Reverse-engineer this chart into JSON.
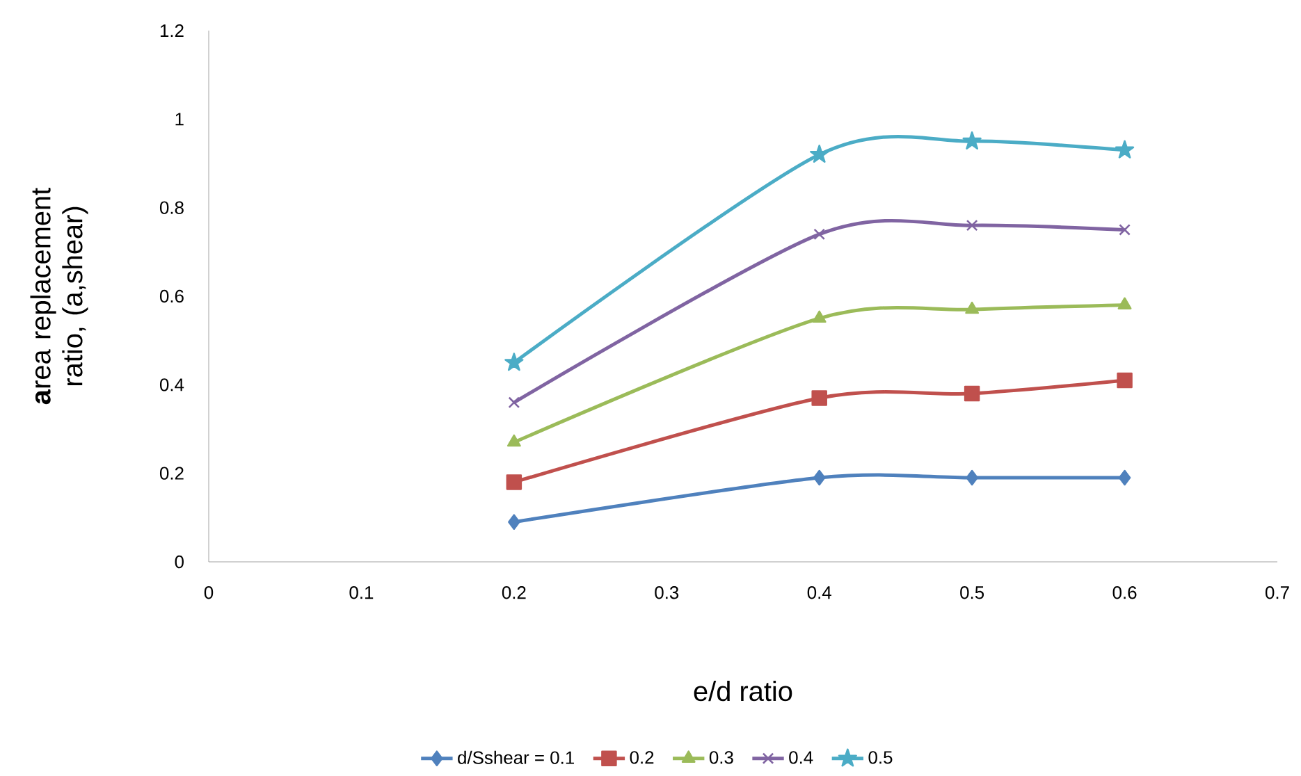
{
  "chart_data": {
    "type": "line",
    "xlabel": "e/d ratio",
    "ylabel": "**a**rea replacement ratio, (a,shear)",
    "x": [
      0.2,
      0.4,
      0.5,
      0.6
    ],
    "series": [
      {
        "name": "d/Sshear = 0.1",
        "color": "#4f81bd",
        "marker": "diamond",
        "values": [
          0.09,
          0.19,
          0.19,
          0.19
        ]
      },
      {
        "name": "0.2",
        "color": "#c0504d",
        "marker": "square",
        "values": [
          0.18,
          0.37,
          0.38,
          0.41
        ]
      },
      {
        "name": "0.3",
        "color": "#9bbb59",
        "marker": "triangle",
        "values": [
          0.27,
          0.55,
          0.57,
          0.58
        ]
      },
      {
        "name": "0.4",
        "color": "#8064a2",
        "marker": "cross",
        "values": [
          0.36,
          0.74,
          0.76,
          0.75
        ]
      },
      {
        "name": "0.5",
        "color": "#4bacc6",
        "marker": "star",
        "values": [
          0.45,
          0.92,
          0.95,
          0.93
        ]
      }
    ],
    "xlim": [
      0,
      0.7
    ],
    "ylim": [
      0,
      1.2
    ],
    "xticks": [
      0,
      0.1,
      0.2,
      0.3,
      0.4,
      0.5,
      0.6,
      0.7
    ],
    "yticks": [
      0,
      0.2,
      0.4,
      0.6,
      0.8,
      1,
      1.2
    ],
    "grid": false,
    "legend": "bottom",
    "line_style": "solid"
  }
}
